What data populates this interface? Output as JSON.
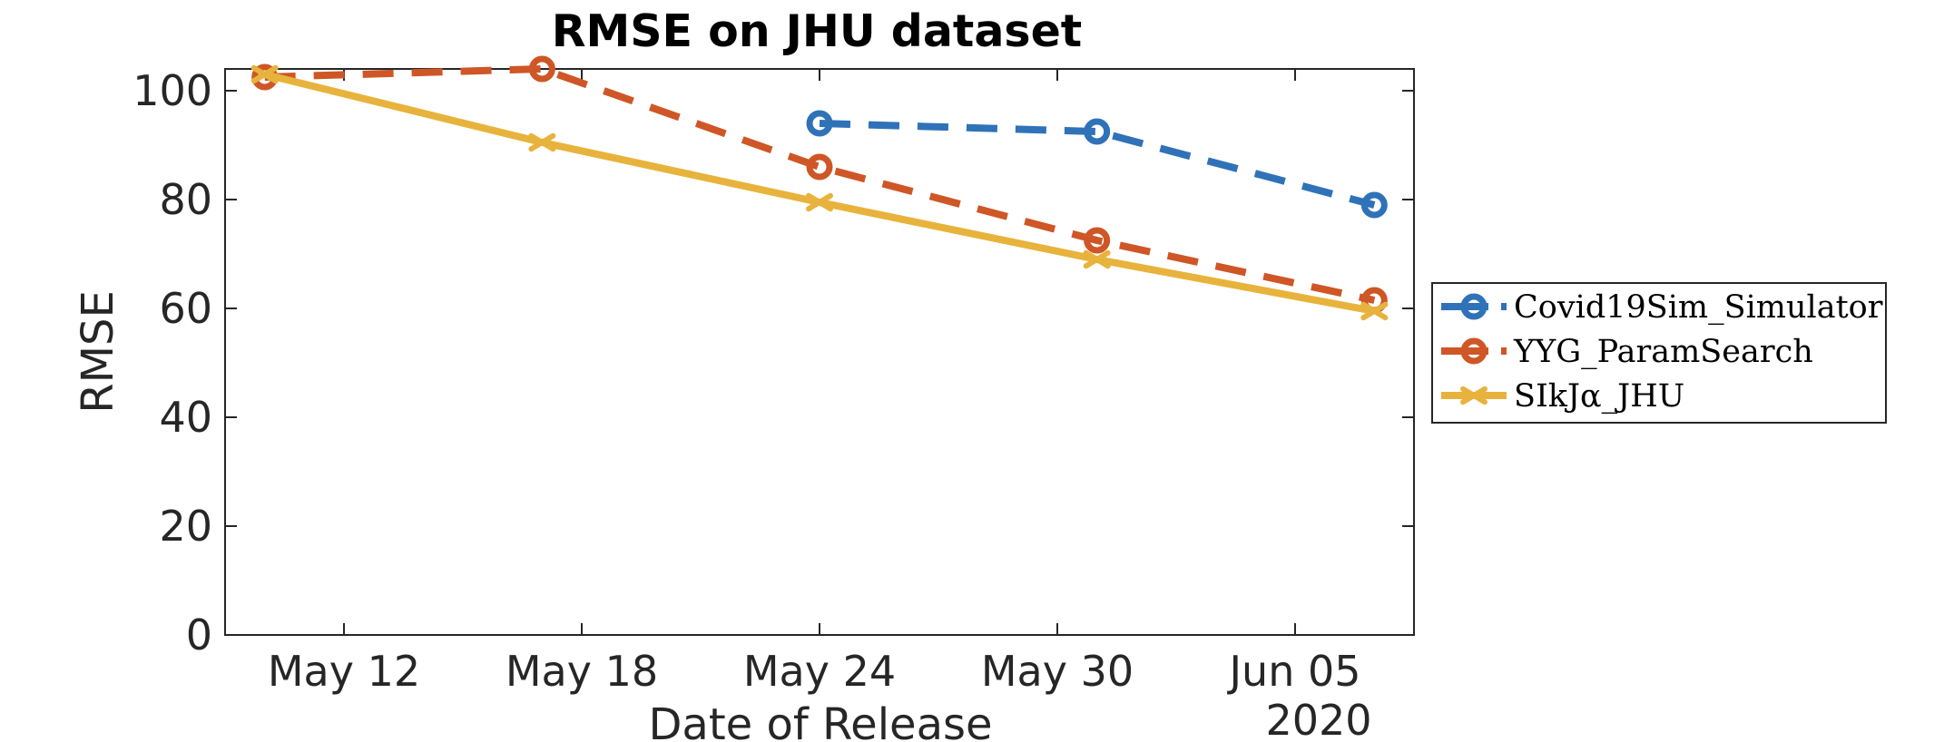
{
  "chart_data": {
    "type": "line",
    "title": "RMSE on JHU dataset",
    "xlabel": "Date of Release",
    "ylabel": "RMSE",
    "x_year_label": "2020",
    "ylim": [
      0,
      104
    ],
    "xlim": [
      "2020-05-09",
      "2020-06-08"
    ],
    "x_ticks": [
      {
        "date": "2020-05-12",
        "label": "May 12"
      },
      {
        "date": "2020-05-18",
        "label": "May 18"
      },
      {
        "date": "2020-05-24",
        "label": "May 24"
      },
      {
        "date": "2020-05-30",
        "label": "May 30"
      },
      {
        "date": "2020-06-05",
        "label": "Jun 05"
      }
    ],
    "y_ticks": [
      0,
      20,
      40,
      60,
      80,
      100
    ],
    "grid": false,
    "legend_position": "outside-right",
    "series": [
      {
        "name": "Covid19Sim_Simulator",
        "color": "#2f72b8",
        "style": "dashed",
        "marker": "circle",
        "x": [
          "2020-05-24",
          "2020-05-31",
          "2020-06-07"
        ],
        "y": [
          94,
          92.5,
          79
        ]
      },
      {
        "name": "YYG_ParamSearch",
        "color": "#cf5626",
        "style": "dashed",
        "marker": "circle",
        "x": [
          "2020-05-10",
          "2020-05-17",
          "2020-05-24",
          "2020-05-31",
          "2020-06-07"
        ],
        "y": [
          102.5,
          104,
          86,
          72.5,
          61.5
        ]
      },
      {
        "name": "SIkJα_JHU",
        "color": "#e8b33c",
        "style": "solid",
        "marker": "x",
        "x": [
          "2020-05-10",
          "2020-05-17",
          "2020-05-24",
          "2020-05-31",
          "2020-06-07"
        ],
        "y": [
          103,
          90.5,
          79.5,
          69,
          59.5
        ]
      }
    ]
  }
}
